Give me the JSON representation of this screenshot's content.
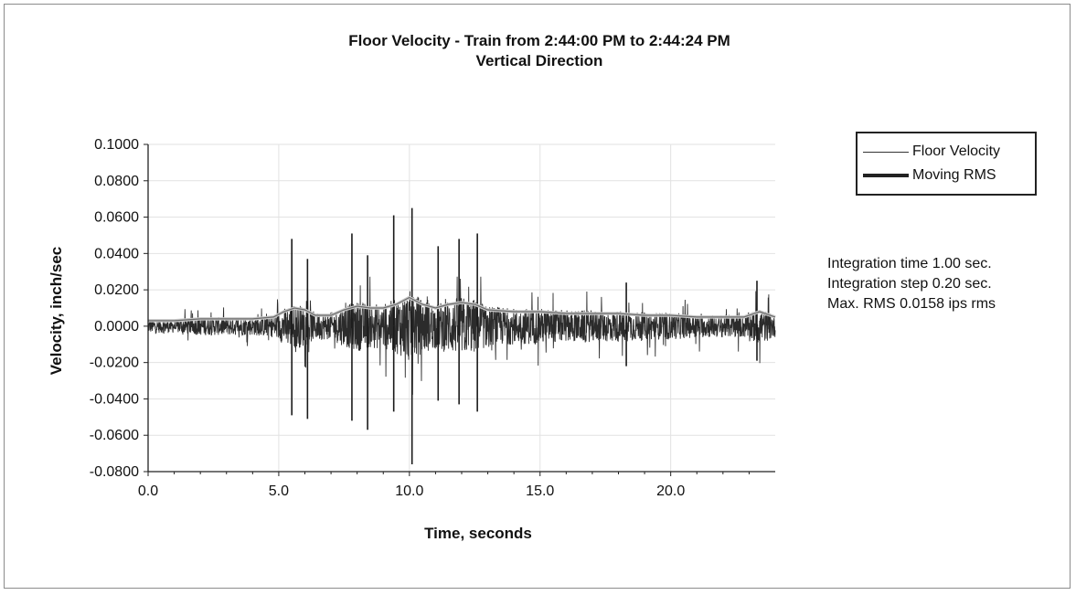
{
  "chart_data": {
    "type": "line",
    "title": "Floor Velocity  -  Train from 2:44:00 PM  to  2:44:24 PM",
    "subtitle": "Vertical Direction",
    "xlabel": "Time, seconds",
    "ylabel": "Velocity, inch/sec",
    "xlim": [
      0,
      24
    ],
    "ylim": [
      -0.08,
      0.1
    ],
    "x_ticks": [
      "0.0",
      "5.0",
      "10.0",
      "15.0",
      "20.0"
    ],
    "y_ticks": [
      "0.1000",
      "0.0800",
      "0.0600",
      "0.0400",
      "0.0200",
      "0.0000",
      "-0.0200",
      "-0.0400",
      "-0.0600",
      "-0.0800"
    ],
    "grid": true,
    "legend_position": "top-right",
    "series": [
      {
        "name": "Floor Velocity",
        "style": "thin line, dense vibration signal",
        "peaks": [
          {
            "x": 5.5,
            "y": 0.048
          },
          {
            "x": 5.5,
            "y": -0.049
          },
          {
            "x": 6.1,
            "y": 0.037
          },
          {
            "x": 6.1,
            "y": -0.051
          },
          {
            "x": 7.8,
            "y": 0.051
          },
          {
            "x": 7.8,
            "y": -0.052
          },
          {
            "x": 8.4,
            "y": 0.039
          },
          {
            "x": 8.4,
            "y": -0.057
          },
          {
            "x": 9.4,
            "y": 0.061
          },
          {
            "x": 9.4,
            "y": -0.047
          },
          {
            "x": 10.1,
            "y": 0.065
          },
          {
            "x": 10.1,
            "y": -0.076
          },
          {
            "x": 11.1,
            "y": 0.044
          },
          {
            "x": 11.1,
            "y": -0.041
          },
          {
            "x": 11.9,
            "y": 0.048
          },
          {
            "x": 11.9,
            "y": -0.043
          },
          {
            "x": 12.6,
            "y": 0.051
          },
          {
            "x": 12.6,
            "y": -0.047
          },
          {
            "x": 18.3,
            "y": 0.024
          },
          {
            "x": 18.3,
            "y": -0.022
          },
          {
            "x": 23.3,
            "y": 0.025
          },
          {
            "x": 23.3,
            "y": -0.019
          }
        ]
      },
      {
        "name": "Moving RMS",
        "style": "thick line with markers",
        "x": [
          0,
          1,
          2,
          3,
          4,
          4.8,
          5.2,
          5.6,
          6.0,
          6.4,
          7.0,
          7.5,
          8.0,
          8.5,
          9.0,
          9.5,
          10.0,
          10.5,
          11.0,
          11.5,
          12.0,
          12.5,
          13.0,
          14,
          15,
          16,
          17,
          18,
          19,
          20,
          21,
          22,
          22.8,
          23.4,
          24
        ],
        "y": [
          0.003,
          0.003,
          0.004,
          0.004,
          0.004,
          0.005,
          0.008,
          0.01,
          0.009,
          0.006,
          0.006,
          0.009,
          0.011,
          0.01,
          0.01,
          0.012,
          0.0158,
          0.012,
          0.01,
          0.012,
          0.013,
          0.012,
          0.009,
          0.008,
          0.008,
          0.007,
          0.007,
          0.007,
          0.006,
          0.006,
          0.005,
          0.005,
          0.005,
          0.008,
          0.005
        ]
      }
    ]
  },
  "annotations": [
    "Integration time  1.00 sec.",
    "Integration step  0.20 sec.",
    "Max. RMS  0.0158 ips rms"
  ]
}
